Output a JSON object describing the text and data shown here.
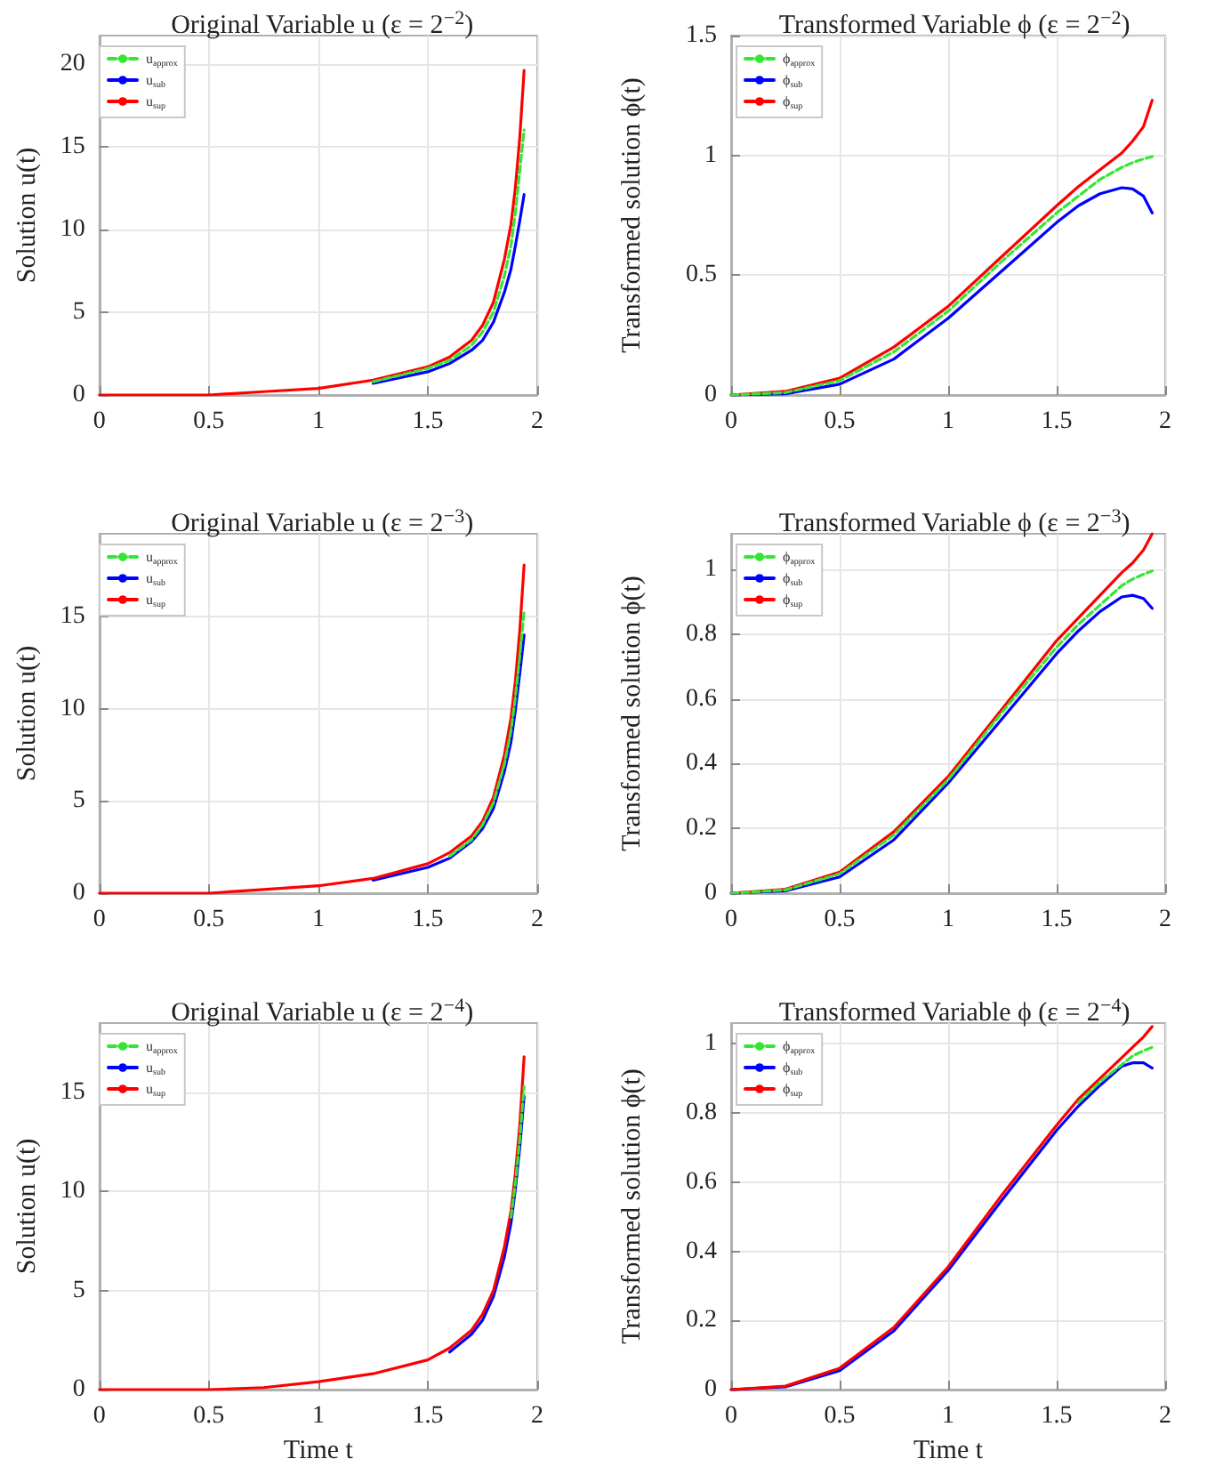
{
  "chart_data": [
    {
      "type": "line",
      "title": "Original Variable u (ε = 2$^{−2}$)",
      "ylabel": "Solution u(t)",
      "x": [
        0,
        0.25,
        0.5,
        0.75,
        1,
        1.25,
        1.5,
        1.6,
        1.7,
        1.75,
        1.8,
        1.85,
        1.88,
        1.9,
        1.92,
        1.94
      ],
      "xlim": [
        0,
        2
      ],
      "ylim": [
        0,
        21.7
      ],
      "xticks": [
        0,
        0.5,
        1,
        1.5,
        2
      ],
      "yticks": [
        0,
        5,
        10,
        15,
        20
      ],
      "grid": true,
      "legend": "top left",
      "series": [
        {
          "name": "u$_{approx}$",
          "color": "#33e633",
          "line_style": "dashed",
          "values": [
            null,
            null,
            null,
            null,
            null,
            0.8,
            1.6,
            2.1,
            3.0,
            3.8,
            5.0,
            7.2,
            9.0,
            11,
            13.5,
            16
          ]
        },
        {
          "name": "u$_{sub}$",
          "color": "#0000ff",
          "line_style": "solid",
          "values": [
            null,
            null,
            null,
            null,
            null,
            0.7,
            1.4,
            1.9,
            2.7,
            3.3,
            4.4,
            6.2,
            7.6,
            9.0,
            10.5,
            12.1
          ]
        },
        {
          "name": "u$_{sup}$",
          "color": "#ff0000",
          "line_style": "solid",
          "values": [
            0,
            0,
            0,
            0.2,
            0.4,
            0.9,
            1.7,
            2.3,
            3.3,
            4.2,
            5.6,
            8.2,
            10.3,
            12.5,
            15.5,
            19.6
          ]
        }
      ]
    },
    {
      "type": "line",
      "title": "Transformed Variable ϕ (ε = 2$^{−2}$)",
      "ylabel": "Transformed solution ϕ(t)",
      "x": [
        0,
        0.25,
        0.5,
        0.75,
        1,
        1.25,
        1.5,
        1.6,
        1.7,
        1.8,
        1.85,
        1.9,
        1.94
      ],
      "xlim": [
        0,
        2
      ],
      "ylim": [
        0,
        1.5
      ],
      "xticks": [
        0,
        0.5,
        1,
        1.5,
        2
      ],
      "yticks": [
        0,
        0.5,
        1,
        1.5
      ],
      "grid": true,
      "legend": "top left",
      "series": [
        {
          "name": "ϕ$_{approx}$",
          "color": "#33e633",
          "line_style": "dashed",
          "values": [
            0,
            0.01,
            0.06,
            0.18,
            0.35,
            0.56,
            0.76,
            0.83,
            0.9,
            0.95,
            0.97,
            0.985,
            0.995
          ]
        },
        {
          "name": "ϕ$_{sub}$",
          "color": "#0000ff",
          "line_style": "solid",
          "values": [
            0,
            0.005,
            0.045,
            0.15,
            0.32,
            0.52,
            0.72,
            0.79,
            0.84,
            0.865,
            0.86,
            0.83,
            0.76
          ]
        },
        {
          "name": "ϕ$_{sup}$",
          "color": "#ff0000",
          "line_style": "solid",
          "values": [
            0,
            0.015,
            0.07,
            0.2,
            0.37,
            0.58,
            0.79,
            0.87,
            0.94,
            1.01,
            1.06,
            1.12,
            1.23
          ]
        }
      ]
    },
    {
      "type": "line",
      "title": "Original Variable u (ε = 2$^{−3}$)",
      "ylabel": "Solution u(t)",
      "x": [
        0,
        0.25,
        0.5,
        0.75,
        1,
        1.25,
        1.5,
        1.6,
        1.7,
        1.75,
        1.8,
        1.85,
        1.88,
        1.9,
        1.92,
        1.94
      ],
      "xlim": [
        0,
        2
      ],
      "ylim": [
        0,
        19.5
      ],
      "xticks": [
        0,
        0.5,
        1,
        1.5,
        2
      ],
      "yticks": [
        0,
        5,
        10,
        15
      ],
      "grid": true,
      "legend": "top left",
      "series": [
        {
          "name": "u$_{approx}$",
          "color": "#33e633",
          "line_style": "dashed",
          "values": [
            null,
            null,
            null,
            null,
            null,
            null,
            null,
            2.0,
            2.9,
            3.7,
            4.9,
            7.0,
            8.8,
            10.6,
            12.8,
            15.3
          ]
        },
        {
          "name": "u$_{sub}$",
          "color": "#0000ff",
          "line_style": "solid",
          "values": [
            null,
            null,
            null,
            null,
            null,
            0.7,
            1.4,
            1.9,
            2.8,
            3.5,
            4.6,
            6.6,
            8.2,
            9.9,
            11.9,
            14.0
          ]
        },
        {
          "name": "u$_{sup}$",
          "color": "#ff0000",
          "line_style": "solid",
          "values": [
            0,
            0,
            0,
            0.2,
            0.4,
            0.8,
            1.6,
            2.2,
            3.1,
            3.9,
            5.2,
            7.5,
            9.5,
            11.5,
            14.2,
            17.8
          ]
        }
      ]
    },
    {
      "type": "line",
      "title": "Transformed Variable ϕ (ε = 2$^{−3}$)",
      "ylabel": "Transformed solution ϕ(t)",
      "x": [
        0,
        0.25,
        0.5,
        0.75,
        1,
        1.25,
        1.5,
        1.6,
        1.7,
        1.8,
        1.85,
        1.9,
        1.94
      ],
      "xlim": [
        0,
        2
      ],
      "ylim": [
        0,
        1.11
      ],
      "xticks": [
        0,
        0.5,
        1,
        1.5,
        2
      ],
      "yticks": [
        0,
        0.2,
        0.4,
        0.6,
        0.8,
        1
      ],
      "grid": true,
      "legend": "top left",
      "series": [
        {
          "name": "ϕ$_{approx}$",
          "color": "#33e633",
          "line_style": "dashed",
          "values": [
            0,
            0.01,
            0.06,
            0.18,
            0.35,
            0.56,
            0.76,
            0.83,
            0.89,
            0.95,
            0.97,
            0.985,
            0.995
          ]
        },
        {
          "name": "ϕ$_{sub}$",
          "color": "#0000ff",
          "line_style": "solid",
          "values": [
            0,
            0.007,
            0.05,
            0.165,
            0.34,
            0.54,
            0.74,
            0.81,
            0.87,
            0.915,
            0.92,
            0.91,
            0.88
          ]
        },
        {
          "name": "ϕ$_{sup}$",
          "color": "#ff0000",
          "line_style": "solid",
          "values": [
            0,
            0.012,
            0.065,
            0.19,
            0.36,
            0.57,
            0.78,
            0.85,
            0.92,
            0.99,
            1.02,
            1.06,
            1.11
          ]
        }
      ]
    },
    {
      "type": "line",
      "title": "Original Variable u (ε = 2$^{−4}$)",
      "xlabel": "Time t",
      "ylabel": "Solution u(t)",
      "x": [
        0,
        0.25,
        0.5,
        0.75,
        1,
        1.25,
        1.5,
        1.6,
        1.7,
        1.75,
        1.8,
        1.85,
        1.88,
        1.9,
        1.92,
        1.94
      ],
      "xlim": [
        0,
        2
      ],
      "ylim": [
        0,
        18.5
      ],
      "xticks": [
        0,
        0.5,
        1,
        1.5,
        2
      ],
      "yticks": [
        0,
        5,
        10,
        15
      ],
      "grid": true,
      "legend": "top left",
      "series": [
        {
          "name": "u$_{approx}$",
          "color": "#33e633",
          "line_style": "dashed",
          "values": [
            null,
            null,
            null,
            null,
            null,
            null,
            null,
            null,
            null,
            null,
            null,
            null,
            8.7,
            10.4,
            12.6,
            15.3
          ]
        },
        {
          "name": "u$_{sub}$",
          "color": "#0000ff",
          "line_style": "solid",
          "values": [
            null,
            null,
            null,
            null,
            null,
            null,
            null,
            1.9,
            2.8,
            3.5,
            4.7,
            6.7,
            8.4,
            10.1,
            12.2,
            14.8
          ]
        },
        {
          "name": "u$_{sup}$",
          "color": "#ff0000",
          "line_style": "solid",
          "values": [
            0,
            0,
            0,
            0.1,
            0.4,
            0.8,
            1.5,
            2.1,
            3.0,
            3.8,
            5.0,
            7.2,
            9.0,
            10.9,
            13.3,
            16.8
          ]
        }
      ]
    },
    {
      "type": "line",
      "title": "Transformed Variable ϕ (ε = 2$^{−4}$)",
      "xlabel": "Time t",
      "ylabel": "Transformed solution ϕ(t)",
      "x": [
        0,
        0.25,
        0.5,
        0.75,
        1,
        1.25,
        1.5,
        1.6,
        1.7,
        1.8,
        1.85,
        1.9,
        1.94
      ],
      "xlim": [
        0,
        2
      ],
      "ylim": [
        0,
        1.06
      ],
      "xticks": [
        0,
        0.5,
        1,
        1.5,
        2
      ],
      "yticks": [
        0,
        0.2,
        0.4,
        0.6,
        0.8,
        1
      ],
      "grid": true,
      "legend": "top left",
      "series": [
        {
          "name": "ϕ$_{approx}$",
          "color": "#33e633",
          "line_style": "dashed",
          "values": [
            null,
            null,
            null,
            null,
            null,
            null,
            null,
            0.83,
            0.89,
            0.94,
            0.965,
            0.98,
            0.99
          ]
        },
        {
          "name": "ϕ$_{sub}$",
          "color": "#0000ff",
          "line_style": "solid",
          "values": [
            0,
            0.008,
            0.055,
            0.17,
            0.345,
            0.55,
            0.75,
            0.82,
            0.88,
            0.935,
            0.945,
            0.945,
            0.93
          ]
        },
        {
          "name": "ϕ$_{sup}$",
          "color": "#ff0000",
          "line_style": "solid",
          "values": [
            0,
            0.01,
            0.062,
            0.18,
            0.355,
            0.565,
            0.765,
            0.84,
            0.9,
            0.96,
            0.99,
            1.02,
            1.05
          ]
        }
      ]
    }
  ]
}
